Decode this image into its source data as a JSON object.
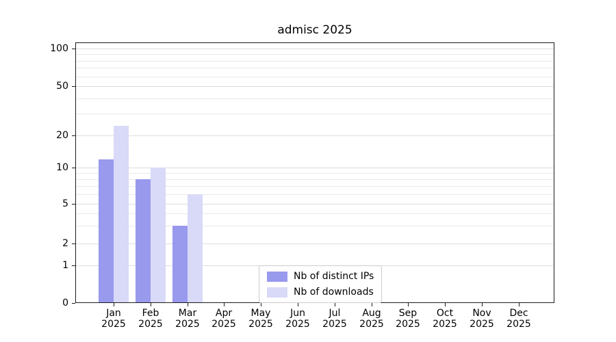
{
  "chart_data": {
    "type": "bar",
    "title": "admisc 2025",
    "categories": [
      "Jan 2025",
      "Feb 2025",
      "Mar 2025",
      "Apr 2025",
      "May 2025",
      "Jun 2025",
      "Jul 2025",
      "Aug 2025",
      "Sep 2025",
      "Oct 2025",
      "Nov 2025",
      "Dec 2025"
    ],
    "series": [
      {
        "name": "Nb of distinct IPs",
        "color": "#9999ee",
        "values": [
          12,
          8,
          3,
          0,
          0,
          0,
          0,
          0,
          0,
          0,
          0,
          0
        ]
      },
      {
        "name": "Nb of downloads",
        "color": "#d9d9f8",
        "values": [
          24,
          10,
          6,
          0,
          0,
          0,
          0,
          0,
          0,
          0,
          0,
          0
        ]
      }
    ],
    "yscale": "symlog",
    "ylim": [
      0,
      100
    ],
    "y_ticks": [
      0,
      1,
      2,
      5,
      10,
      20,
      50,
      100
    ],
    "y_minor_ticks": [
      3,
      4,
      6,
      7,
      8,
      9,
      30,
      40,
      60,
      70,
      80,
      90
    ],
    "grid": "horizontal",
    "legend_position": "lower center"
  },
  "style": {
    "background": "#ffffff",
    "axis_color": "#1a1a1a",
    "grid_major_color": "#dcdcdc",
    "grid_minor_color": "#e9e9e9",
    "tick_color": "#1a1a1a",
    "legend_border_color": "#cccccc",
    "text_color": "#000000"
  }
}
